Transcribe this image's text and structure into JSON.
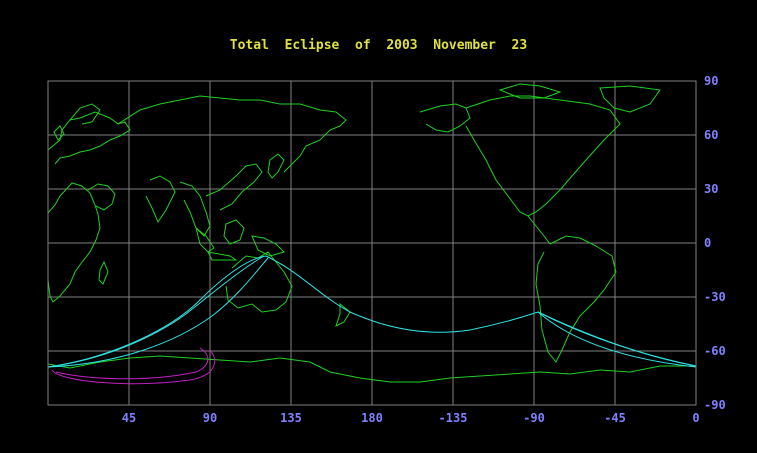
{
  "title": "Total  Eclipse  of  2003  November  23",
  "colors": {
    "background": "#000000",
    "title": "#e0e040",
    "coastline": "#20d020",
    "grid": "#808080",
    "eclipse_path": "#30e0e0",
    "penumbra_limit": "#c020c0",
    "axis_labels": "#8080ff"
  },
  "map": {
    "projection": "equirectangular",
    "center_longitude": 180,
    "longitude_range": [
      0,
      360
    ],
    "latitude_range": [
      -90,
      90
    ],
    "longitude_ticks": [
      "45",
      "90",
      "135",
      "180",
      "-135",
      "-90",
      "-45",
      "0"
    ],
    "latitude_ticks": [
      "90",
      "60",
      "30",
      "0",
      "-30",
      "-60",
      "-90"
    ]
  }
}
